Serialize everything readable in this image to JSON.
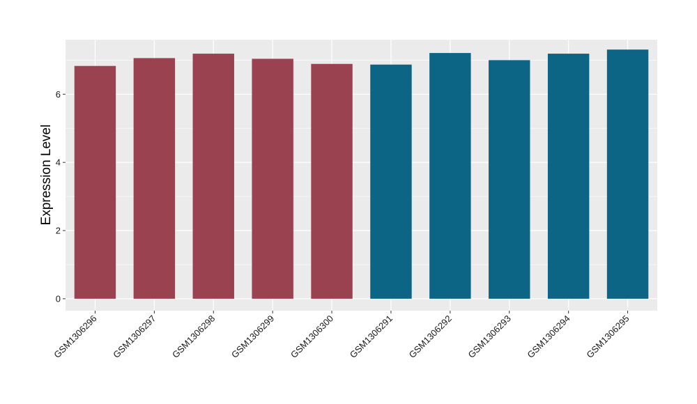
{
  "chart_data": {
    "type": "bar",
    "ylabel": "Expression Level",
    "xlabel": "",
    "title": "",
    "ylim": [
      -0.35,
      7.6
    ],
    "yticks": [
      0,
      2,
      4,
      6
    ],
    "grid": true,
    "panel_background": "#ebebeb",
    "grid_color": "#ffffff",
    "categories": [
      "GSM1306296",
      "GSM1306297",
      "GSM1306298",
      "GSM1306299",
      "GSM1306300",
      "GSM1306291",
      "GSM1306292",
      "GSM1306293",
      "GSM1306294",
      "GSM1306295"
    ],
    "values": [
      6.83,
      7.06,
      7.19,
      7.04,
      6.89,
      6.87,
      7.21,
      7.0,
      7.19,
      7.31
    ],
    "colors": [
      "#9a4250",
      "#9a4250",
      "#9a4250",
      "#9a4250",
      "#9a4250",
      "#0c6585",
      "#0c6585",
      "#0c6585",
      "#0c6585",
      "#0c6585"
    ]
  }
}
